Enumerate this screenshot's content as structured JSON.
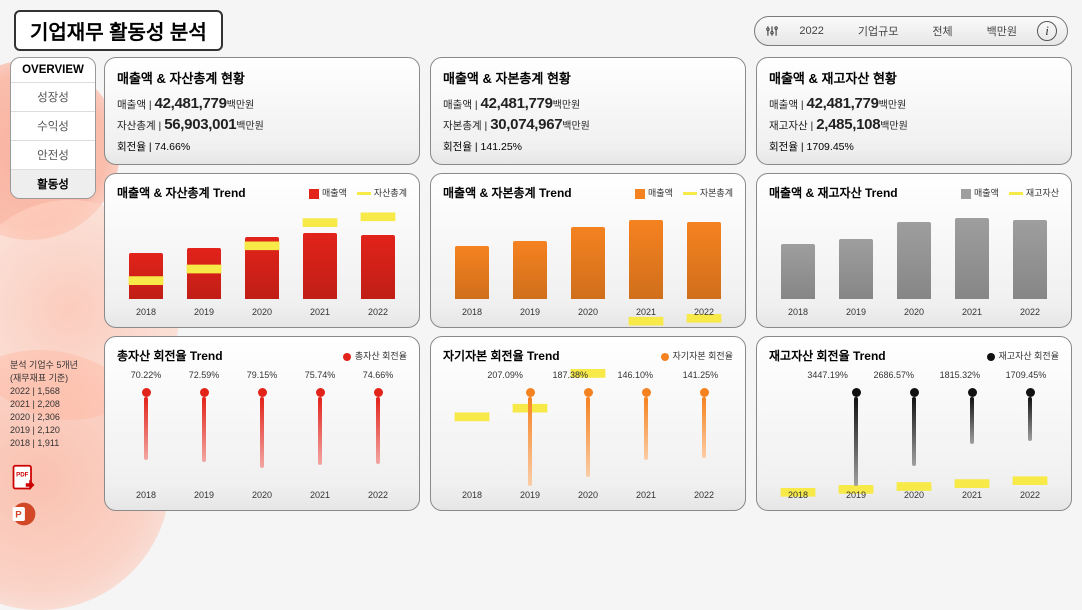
{
  "header": {
    "title": "기업재무 활동성 분석",
    "year": "2022",
    "scope_label": "기업규모",
    "scope_value": "전체",
    "unit": "백만원"
  },
  "sidebar": {
    "items": [
      {
        "label": "OVERVIEW",
        "key": "overview"
      },
      {
        "label": "성장성",
        "key": "growth"
      },
      {
        "label": "수익성",
        "key": "profit"
      },
      {
        "label": "안전성",
        "key": "safety"
      },
      {
        "label": "활동성",
        "key": "activity",
        "active": true
      }
    ],
    "stats_header1": "분석 기업수 5개년",
    "stats_header2": "(재무재표 기준)",
    "stats": [
      {
        "year": "2022",
        "count": "1,568"
      },
      {
        "year": "2021",
        "count": "2,208"
      },
      {
        "year": "2020",
        "count": "2,306"
      },
      {
        "year": "2019",
        "count": "2,120"
      },
      {
        "year": "2018",
        "count": "1,911"
      }
    ]
  },
  "columns": [
    {
      "accent": "#e2231a",
      "line": "#f7e948",
      "summary": {
        "title": "매출액 & 자산총계 현황",
        "row1_label": "매출액 | ",
        "row1_value": "42,481,779",
        "row1_unit": "백만원",
        "row2_label": "자산총계 | ",
        "row2_value": "56,903,001",
        "row2_unit": "백만원",
        "turn_label": "회전율 | ",
        "turn_value": "74.66%"
      },
      "trend": {
        "title": "매출액 & 자산총계 Trend",
        "legend_bar": "매출액",
        "legend_line": "자산총계",
        "years": [
          "2018",
          "2019",
          "2020",
          "2021",
          "2022"
        ],
        "bar_values": [
          52,
          58,
          70,
          75,
          73
        ],
        "line_values": [
          76,
          80,
          88,
          96,
          98
        ]
      },
      "turn": {
        "title": "총자산 회전율 Trend",
        "legend": "총자산 회전율",
        "years": [
          "2018",
          "2019",
          "2020",
          "2021",
          "2022"
        ],
        "labels": [
          "70.22%",
          "72.59%",
          "79.15%",
          "75.74%",
          "74.66%"
        ],
        "values": [
          70.22,
          72.59,
          79.15,
          75.74,
          74.66
        ],
        "vmax": 100
      }
    },
    {
      "accent": "#f58220",
      "line": "#f7e948",
      "summary": {
        "title": "매출액 & 자본총계 현황",
        "row1_label": "매출액 | ",
        "row1_value": "42,481,779",
        "row1_unit": "백만원",
        "row2_label": "자본총계 | ",
        "row2_value": "30,074,967",
        "row2_unit": "백만원",
        "turn_label": "회전율 | ",
        "turn_value": "141.25%"
      },
      "trend": {
        "title": "매출액 & 자본총계 Trend",
        "legend_bar": "매출액",
        "legend_line": "자본총계",
        "years": [
          "2018",
          "2019",
          "2020",
          "2021",
          "2022"
        ],
        "bar_values": [
          60,
          66,
          82,
          90,
          88
        ],
        "line_values": [
          29,
          32,
          44,
          62,
          63
        ]
      },
      "turn": {
        "title": "자기자본 회전율 Trend",
        "legend": "자기자본 회전율",
        "years": [
          "2018",
          "2019",
          "2020",
          "2021",
          "2022"
        ],
        "labels": [
          "",
          "207.09%",
          "187.38%",
          "146.10%",
          "141.25%"
        ],
        "values": [
          0,
          207.09,
          187.38,
          146.1,
          141.25
        ],
        "vmax": 210
      }
    },
    {
      "accent": "#9e9e9e",
      "line": "#f7e948",
      "dot": "#111111",
      "summary": {
        "title": "매출액 & 재고자산 현황",
        "row1_label": "매출액 | ",
        "row1_value": "42,481,779",
        "row1_unit": "백만원",
        "row2_label": "재고자산 | ",
        "row2_value": "2,485,108",
        "row2_unit": "백만원",
        "turn_label": "회전율 | ",
        "turn_value": "1709.45%"
      },
      "trend": {
        "title": "매출액 & 재고자산 Trend",
        "legend_bar": "매출액",
        "legend_line": "재고자산",
        "years": [
          "2018",
          "2019",
          "2020",
          "2021",
          "2022"
        ],
        "bar_values": [
          62,
          68,
          88,
          92,
          90
        ],
        "line_values": [
          3,
          4,
          5,
          6,
          7
        ]
      },
      "turn": {
        "title": "재고자산 회전율 Trend",
        "legend": "재고자산 회전율",
        "years": [
          "2018",
          "2019",
          "2020",
          "2021",
          "2022"
        ],
        "labels": [
          "",
          "3447.19%",
          "2686.57%",
          "1815.32%",
          "1709.45%"
        ],
        "values": [
          0,
          3447.19,
          2686.57,
          1815.32,
          1709.45
        ],
        "vmax": 3500
      }
    }
  ],
  "style": {
    "card_border": "#8a8a8a",
    "grid": "#d9d9d9",
    "text": "#222222",
    "year_font": 9,
    "title_font": 13
  }
}
